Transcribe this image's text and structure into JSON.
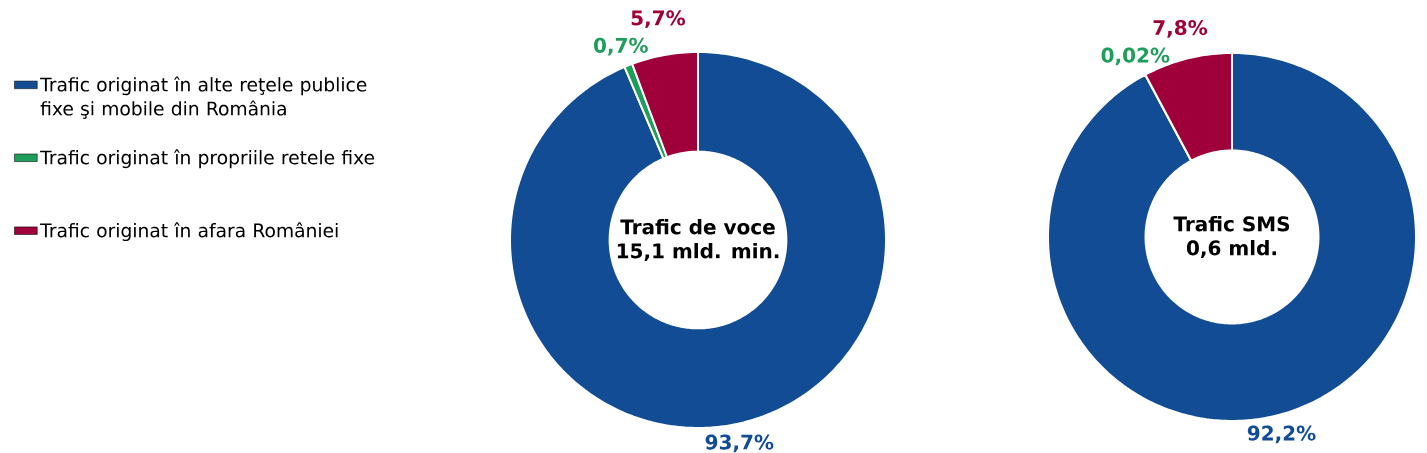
{
  "chart_data": [
    {
      "type": "donut",
      "title": "Trafic de voce",
      "subtitle": "15,1 mld. min.",
      "categories": [
        "Trafic originat în alte reţele publice fixe şi mobile din România",
        "Trafic originat în propriile retele fixe",
        "Trafic originat în afara României"
      ],
      "values": [
        93.7,
        0.7,
        5.7
      ],
      "value_labels": [
        "93,7%",
        "0,7%",
        "5,7%"
      ],
      "colors": [
        "#124c94",
        "#1e9e5a",
        "#a0003a"
      ],
      "legend": "left"
    },
    {
      "type": "donut",
      "title": "Trafic SMS",
      "subtitle": "0,6 mld.",
      "categories": [
        null,
        null,
        null
      ],
      "values": [
        92.2,
        0.02,
        7.8
      ],
      "value_labels": [
        "92,2%",
        "0,02%",
        "7,8%"
      ],
      "colors": [
        "#124c94",
        "#1e9e5a",
        "#a0003a"
      ]
    }
  ]
}
